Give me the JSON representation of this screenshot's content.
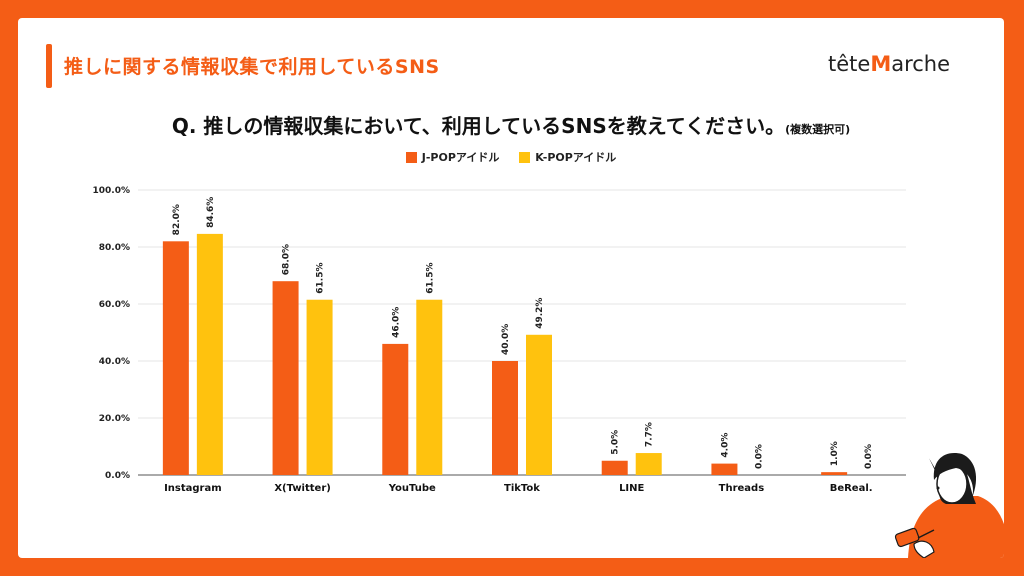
{
  "header": {
    "title": "推しに関する情報収集で利用しているSNS"
  },
  "brand": {
    "prefix": "tête",
    "mark": "M",
    "suffix": "arche"
  },
  "question": {
    "main": "Q. 推しの情報収集において、利用しているSNSを教えてください。",
    "note": "(複数選択可)"
  },
  "colors": {
    "accent": "#f45d16",
    "series1": "#f45d16",
    "series2": "#ffc20e",
    "grid": "#dcdcdc"
  },
  "chart_data": {
    "type": "bar",
    "title": "",
    "xlabel": "",
    "ylabel": "",
    "ylim": [
      0,
      100
    ],
    "yticks": [
      "0.0%",
      "20.0%",
      "40.0%",
      "60.0%",
      "80.0%",
      "100.0%"
    ],
    "grid": true,
    "legend_position": "top-center",
    "categories": [
      "Instagram",
      "X(Twitter)",
      "YouTube",
      "TikTok",
      "LINE",
      "Threads",
      "BeReal."
    ],
    "series": [
      {
        "name": "J-POPアイドル",
        "values": [
          82.0,
          68.0,
          46.0,
          40.0,
          5.0,
          4.0,
          1.0
        ],
        "labels": [
          "82.0%",
          "68.0%",
          "46.0%",
          "40.0%",
          "5.0%",
          "4.0%",
          "1.0%"
        ]
      },
      {
        "name": "K-POPアイドル",
        "values": [
          84.6,
          61.5,
          61.5,
          49.2,
          7.7,
          0.0,
          0.0
        ],
        "labels": [
          "84.6%",
          "61.5%",
          "61.5%",
          "49.2%",
          "7.7%",
          "0.0%",
          "0.0%"
        ]
      }
    ]
  }
}
